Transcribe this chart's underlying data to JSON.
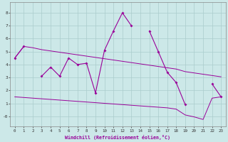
{
  "xlabel": "Windchill (Refroidissement éolien,°C)",
  "x": [
    0,
    1,
    2,
    3,
    4,
    5,
    6,
    7,
    8,
    9,
    10,
    11,
    12,
    13,
    14,
    15,
    16,
    17,
    18,
    19,
    20,
    21,
    22,
    23
  ],
  "main_line": [
    4.5,
    5.4,
    null,
    3.1,
    3.8,
    3.1,
    4.5,
    4.0,
    4.1,
    1.8,
    5.1,
    6.6,
    8.0,
    7.0,
    null,
    6.6,
    5.0,
    3.4,
    2.6,
    0.9,
    null,
    null,
    2.5,
    1.5
  ],
  "upper_line": [
    4.5,
    5.4,
    5.3,
    5.15,
    5.05,
    4.95,
    4.85,
    4.75,
    4.65,
    4.55,
    4.45,
    4.35,
    4.25,
    4.15,
    4.05,
    3.95,
    3.85,
    3.75,
    3.65,
    3.45,
    3.35,
    3.25,
    3.15,
    3.05
  ],
  "lower_line": [
    1.5,
    1.45,
    1.4,
    1.35,
    1.3,
    1.25,
    1.2,
    1.15,
    1.1,
    1.05,
    1.0,
    0.95,
    0.9,
    0.85,
    0.8,
    0.75,
    0.7,
    0.65,
    0.55,
    0.1,
    -0.05,
    -0.25,
    1.4,
    1.5
  ],
  "line_color": "#990099",
  "bg_color": "#cce8e8",
  "grid_color": "#aacccc",
  "ylim": [
    -0.8,
    8.8
  ],
  "xlim": [
    -0.5,
    23.5
  ],
  "yticks": [
    0,
    1,
    2,
    3,
    4,
    5,
    6,
    7,
    8
  ],
  "ytick_labels": [
    "-0",
    "1",
    "2",
    "3",
    "4",
    "5",
    "6",
    "7",
    "8"
  ],
  "xticks": [
    0,
    1,
    2,
    3,
    4,
    5,
    6,
    7,
    8,
    9,
    10,
    11,
    12,
    13,
    14,
    15,
    16,
    17,
    18,
    19,
    20,
    21,
    22,
    23
  ]
}
